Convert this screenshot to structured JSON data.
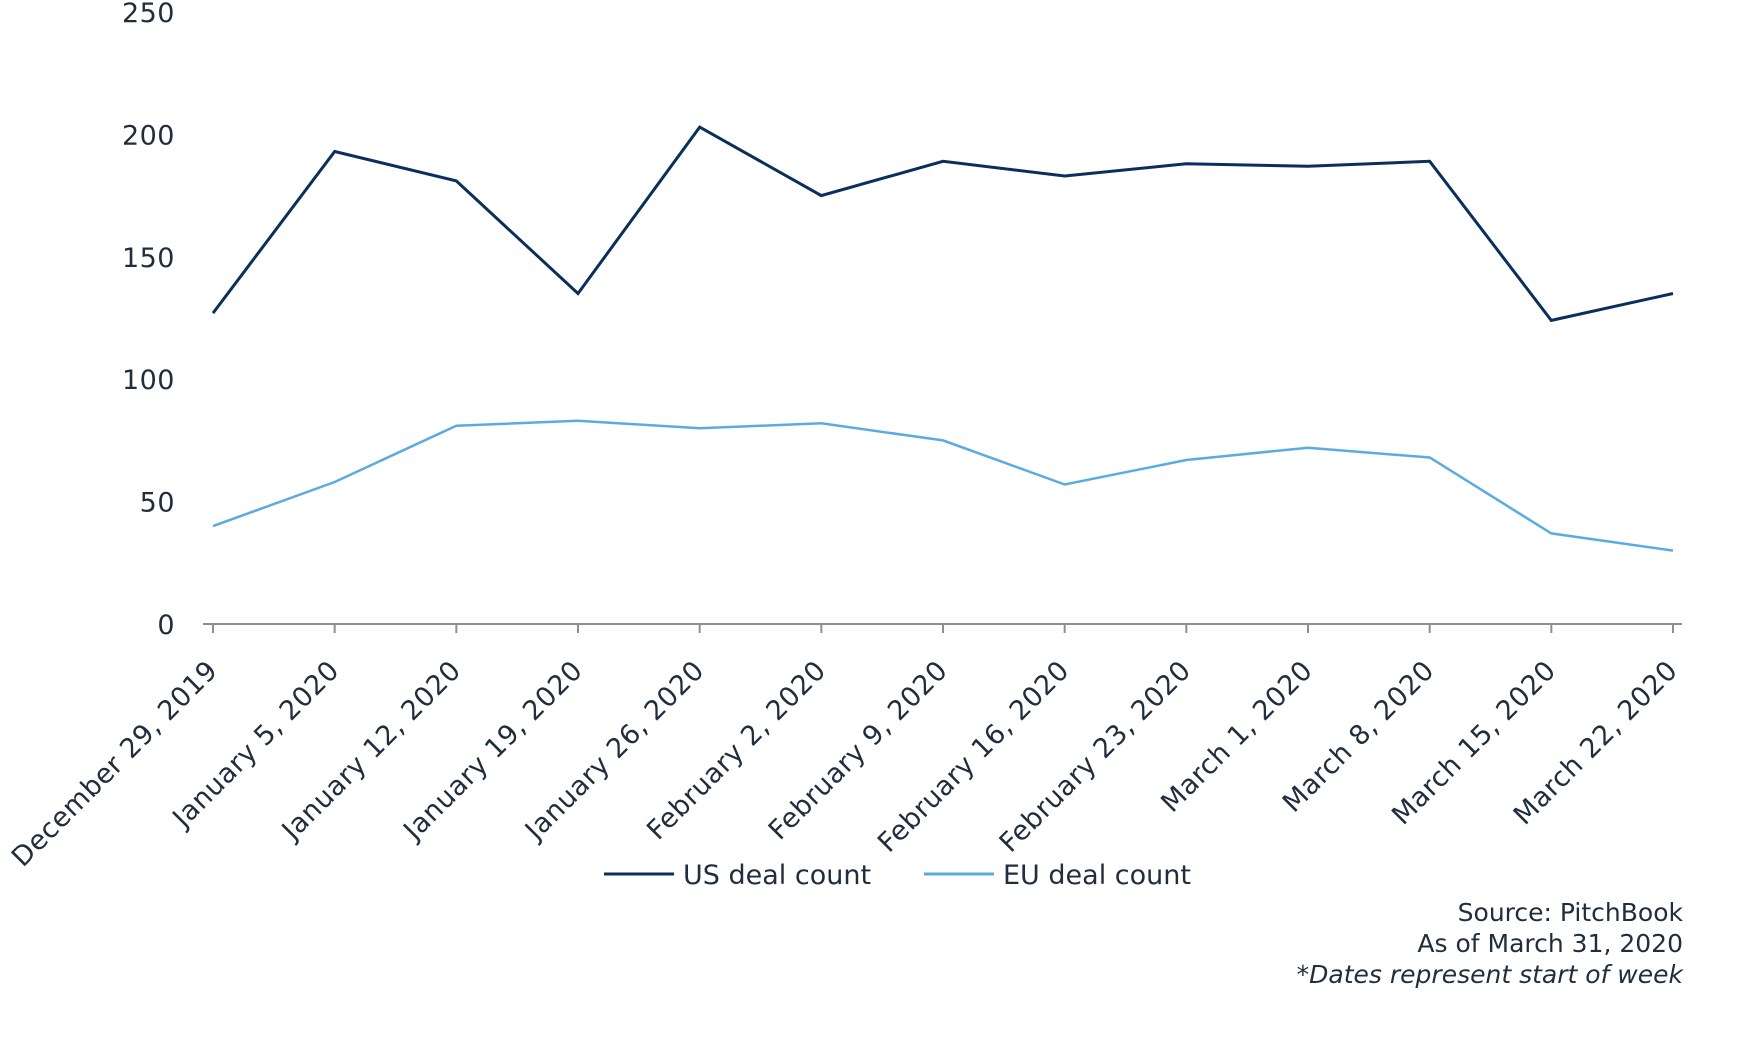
{
  "chart_data": {
    "type": "line",
    "title": "",
    "xlabel": "",
    "ylabel": "",
    "ylim": [
      0,
      250
    ],
    "yticks": [
      0,
      50,
      100,
      150,
      200,
      250
    ],
    "grid": false,
    "legend_position": "bottom",
    "categories": [
      "December 29, 2019",
      "January 5, 2020",
      "January 12, 2020",
      "January 19, 2020",
      "January 26, 2020",
      "February 2, 2020",
      "February 9, 2020",
      "February 16, 2020",
      "February 23, 2020",
      "March 1, 2020",
      "March 8, 2020",
      "March 15, 2020",
      "March 22, 2020"
    ],
    "series": [
      {
        "name": "US deal count",
        "color": "#0b2f5b",
        "values": [
          127,
          193,
          181,
          135,
          203,
          175,
          189,
          183,
          188,
          187,
          189,
          124,
          135
        ]
      },
      {
        "name": "EU deal count",
        "color": "#5aace0",
        "values": [
          40,
          58,
          81,
          83,
          80,
          82,
          75,
          57,
          67,
          72,
          68,
          37,
          30
        ]
      }
    ]
  },
  "notes": {
    "source": "Source: PitchBook",
    "as_of": "As of March 31, 2020",
    "footnote": "*Dates represent start of week"
  }
}
